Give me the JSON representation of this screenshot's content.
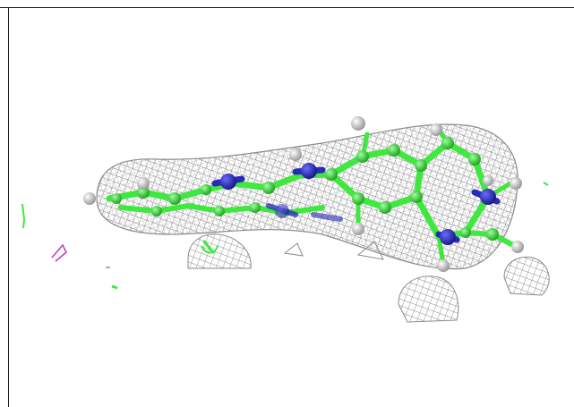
{
  "scene": {
    "background": "#ffffff",
    "frame_color": "#1a1a1a",
    "mesh_color": "#8a8a8a",
    "carbon_color": "#3ee83e",
    "nitrogen_color": "#2a2ab8",
    "hydrogen_color": "#d8d8d8",
    "noise_magenta": "#c03ac0",
    "noise_green": "#3ee83e"
  }
}
